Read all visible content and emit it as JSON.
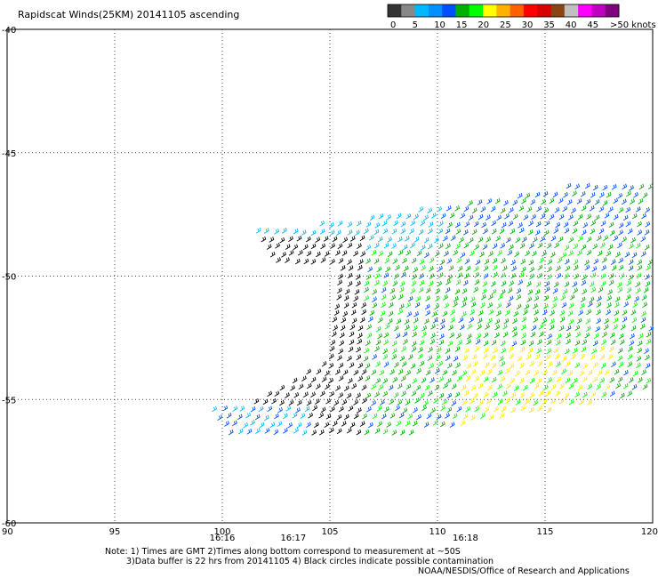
{
  "chart_data": {
    "type": "scatter",
    "title": "Rapidscat Winds(25KM) 20141105 ascending",
    "xlabel": "",
    "ylabel": "",
    "x_ticks": [
      "90",
      "95",
      "100",
      "105",
      "110",
      "115",
      "120"
    ],
    "y_ticks": [
      "-40",
      "-45",
      "-50",
      "-55",
      "-60"
    ],
    "xlim": [
      90,
      120
    ],
    "ylim": [
      -60,
      -40
    ],
    "grid": "dotted",
    "time_labels": [
      {
        "label": "16:16",
        "lon": 100
      },
      {
        "label": "16:17",
        "lon": 103.3
      },
      {
        "label": "16:18",
        "lon": 111.3
      }
    ],
    "legend": {
      "placement": "top-right",
      "labels": [
        "0",
        "5",
        "10",
        "15",
        "20",
        "25",
        "30",
        "35",
        "40",
        "45",
        ">50 knots"
      ],
      "colors": [
        "#333333",
        "#888888",
        "#00b8ff",
        "#0090ff",
        "#0050ff",
        "#00b000",
        "#00ff00",
        "#ffff00",
        "#ffb000",
        "#ff6000",
        "#ff0000",
        "#d80000",
        "#8b4513",
        "#c0c0c0",
        "#ff00ff",
        "#c000c0",
        "#800080"
      ]
    },
    "notes": [
      "Note: 1) Times are GMT  2)Times along bottom correspond to measurement at ~50S",
      "3)Data buffer is 22 hrs from 20141105  4) Black circles indicate possible contamination"
    ],
    "credit": "NOAA/NESDIS/Office of Research and Applications"
  }
}
